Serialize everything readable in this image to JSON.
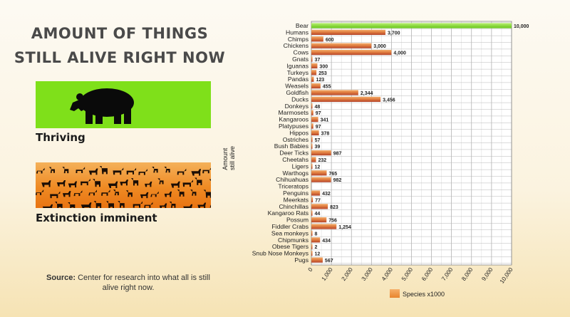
{
  "title_lines": [
    "AMOUNT OF THINGS",
    "STILL ALIVE RIGHT NOW"
  ],
  "panels": {
    "thriving_label": "Thriving",
    "extinction_label": "Extinction imminent"
  },
  "source": {
    "label": "Source:",
    "text": "Center for research into what all is still alive  right now."
  },
  "colors": {
    "green": "#7fe01a",
    "orange": "#ef8a23",
    "bar_dark": "#b4432a",
    "bar_light": "#f0a050"
  },
  "chart_data": {
    "type": "bar",
    "orientation": "horizontal",
    "ylabel": "Amount still alive",
    "xlim": [
      0,
      10000
    ],
    "xticks": [
      0,
      1000,
      2000,
      3000,
      4000,
      5000,
      6000,
      7000,
      8000,
      9000,
      10000
    ],
    "xtick_labels": [
      "0",
      "1,000",
      "2,000",
      "3,000",
      "4,000",
      "5,000",
      "6,000",
      "7,000",
      "8,000",
      "9,000",
      "10,000"
    ],
    "grid": true,
    "legend": {
      "position": "bottom",
      "label": "Species x1000"
    },
    "categories": [
      "Bear",
      "Humans",
      "Chimps",
      "Chickens",
      "Cows",
      "Gnats",
      "Iguanas",
      "Turkeys",
      "Pandas",
      "Weasels",
      "Goldfish",
      "Ducks",
      "Donkeys",
      "Marmosets",
      "Kangaroos",
      "Platypuses",
      "Hippos",
      "Ostriches",
      "Bush Babies",
      "Deer Ticks",
      "Cheetahs",
      "Ligers",
      "Warthogs",
      "Chihuahuas",
      "Triceratops",
      "Penguins",
      "Meerkats",
      "Chinchillas",
      "Kangaroo Rats",
      "Possum",
      "Fiddler Crabs",
      "Sea monkeys",
      "Chipmunks",
      "Obese Tigers",
      "Snub Nose Monkeys",
      "Pugs"
    ],
    "values": [
      10000,
      3700,
      600,
      3000,
      4000,
      37,
      300,
      253,
      123,
      455,
      2344,
      3456,
      48,
      97,
      341,
      97,
      378,
      57,
      39,
      987,
      232,
      12,
      765,
      982,
      0,
      432,
      77,
      823,
      44,
      756,
      1254,
      8,
      434,
      2,
      12,
      567
    ],
    "value_labels": [
      "10,000",
      "3,700",
      "600",
      "3,000",
      "4,000",
      "37",
      "300",
      "253",
      "123",
      "455",
      "2,344",
      "3,456",
      "48",
      "97",
      "341",
      "97",
      "378",
      "57",
      "39",
      "987",
      "232",
      "12",
      "765",
      "982",
      "",
      "432",
      "77",
      "823",
      "44",
      "756",
      "1,254",
      "8",
      "434",
      "2",
      "12",
      "567"
    ]
  }
}
